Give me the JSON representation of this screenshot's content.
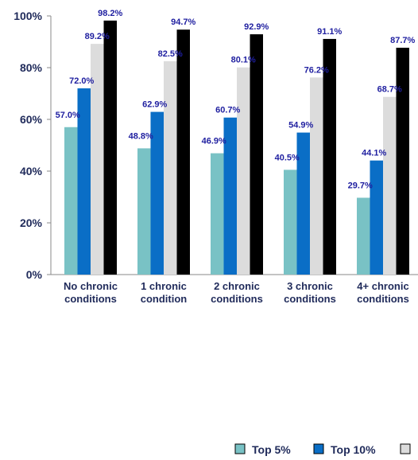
{
  "chart_data": {
    "type": "bar",
    "title": "",
    "xlabel": "",
    "ylabel": "",
    "ylim": [
      0,
      100
    ],
    "yticks": [
      "0%",
      "20%",
      "40%",
      "60%",
      "80%",
      "100%"
    ],
    "ytick_values": [
      0,
      20,
      40,
      60,
      80,
      100
    ],
    "grid": false,
    "legend_position": "bottom",
    "categories": [
      [
        "No chronic",
        "conditions"
      ],
      [
        "1 chronic",
        "condition"
      ],
      [
        "2 chronic",
        "conditions"
      ],
      [
        "3 chronic",
        "conditions"
      ],
      [
        "4+ chronic",
        "conditions"
      ]
    ],
    "series": [
      {
        "name": "Top 5%",
        "color": "#79c2c5",
        "values": [
          57.0,
          48.8,
          46.9,
          40.5,
          29.7
        ],
        "labels": [
          "57.0%",
          "48.8%",
          "46.9%",
          "40.5%",
          "29.7%"
        ]
      },
      {
        "name": "Top 10%",
        "color": "#0a6ec6",
        "values": [
          72.0,
          62.9,
          60.7,
          54.9,
          44.1
        ],
        "labels": [
          "72.0%",
          "62.9%",
          "60.7%",
          "54.9%",
          "44.1%"
        ]
      },
      {
        "name": "",
        "color": "#dcdcdc",
        "values": [
          89.2,
          82.5,
          80.1,
          76.2,
          68.7
        ],
        "labels": [
          "89.2%",
          "82.5%",
          "80.1%",
          "76.2%",
          "68.7%"
        ]
      },
      {
        "name": "",
        "color": "#000000",
        "values": [
          98.2,
          94.7,
          92.9,
          91.1,
          87.7
        ],
        "labels": [
          "98.2%",
          "94.7%",
          "92.9%",
          "91.1%",
          "87.7%"
        ]
      }
    ]
  }
}
